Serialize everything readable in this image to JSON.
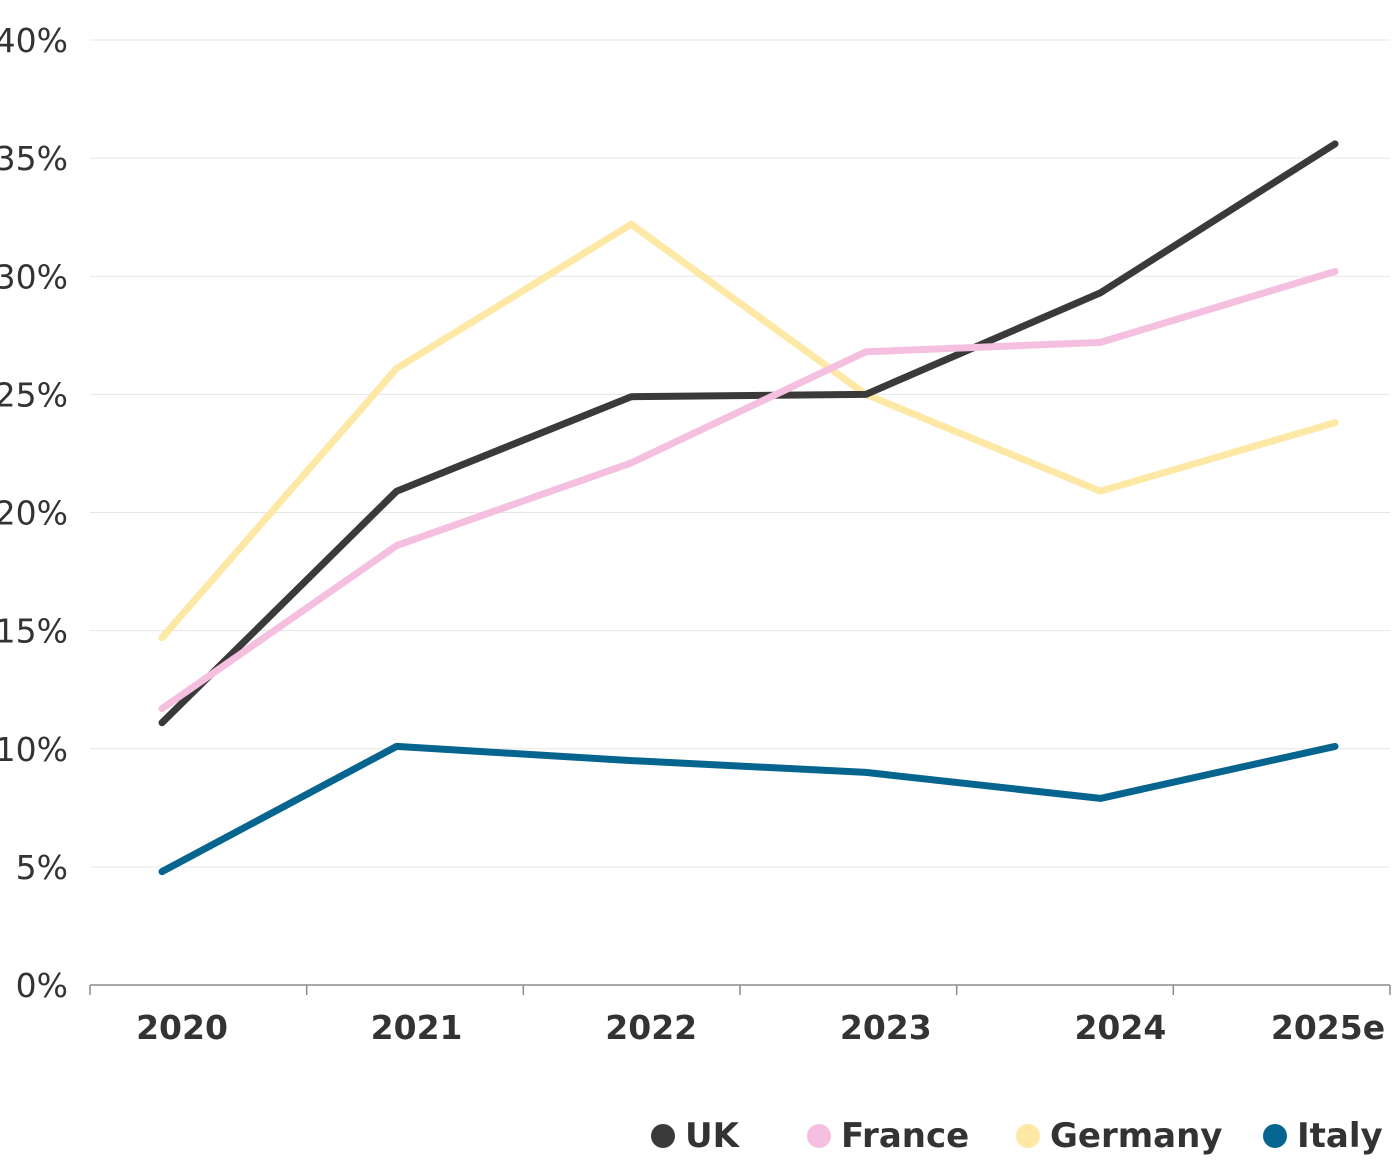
{
  "chart_data": {
    "type": "line",
    "title": "",
    "xlabel": "",
    "ylabel": "",
    "categories": [
      "2020",
      "2021",
      "2022",
      "2023",
      "2024",
      "2025e"
    ],
    "yticks": [
      "0%",
      "5%",
      "10%",
      "15%",
      "20%",
      "25%",
      "30%",
      "35%",
      "40%"
    ],
    "ylim": [
      0,
      40
    ],
    "grid": true,
    "legend_position": "bottom-right",
    "series": [
      {
        "name": "UK",
        "color": "#3a3a3a",
        "values": [
          11.1,
          20.9,
          24.9,
          25.0,
          29.3,
          35.6
        ]
      },
      {
        "name": "France",
        "color": "#f5bfe0",
        "values": [
          11.7,
          18.6,
          22.1,
          26.8,
          27.2,
          30.2
        ]
      },
      {
        "name": "Germany",
        "color": "#fde8a6",
        "values": [
          14.7,
          26.1,
          32.2,
          25.0,
          20.9,
          23.8
        ]
      },
      {
        "name": "Italy",
        "color": "#05658f",
        "values": [
          4.8,
          10.1,
          9.5,
          9.0,
          7.9,
          10.1
        ]
      }
    ]
  }
}
